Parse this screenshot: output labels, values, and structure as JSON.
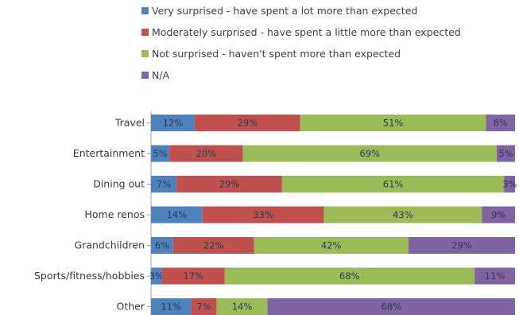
{
  "chart_data": {
    "type": "bar",
    "orientation": "horizontal",
    "stacked": "percent",
    "title": "",
    "xlabel": "",
    "ylabel": "",
    "categories": [
      "Travel",
      "Entertainment",
      "Dining out",
      "Home renos",
      "Grandchildren",
      "Sports/fitness/hobbies",
      "Other"
    ],
    "series": [
      {
        "name": "Very surprised - have spent a lot more than expected",
        "color": "#4f81bd",
        "values": [
          12,
          5,
          7,
          14,
          6,
          3,
          11
        ]
      },
      {
        "name": "Moderately surprised - have spent a little more than expected",
        "color": "#c0504d",
        "values": [
          29,
          20,
          29,
          33,
          22,
          17,
          7
        ]
      },
      {
        "name": "Not surprised - haven't spent more than expected",
        "color": "#9bbb59",
        "values": [
          51,
          69,
          61,
          43,
          42,
          68,
          14
        ]
      },
      {
        "name": "N/A",
        "color": "#8064a2",
        "values": [
          8,
          5,
          3,
          9,
          29,
          11,
          68
        ]
      }
    ],
    "value_suffix": "%",
    "legend_position": "top",
    "grid": false
  }
}
